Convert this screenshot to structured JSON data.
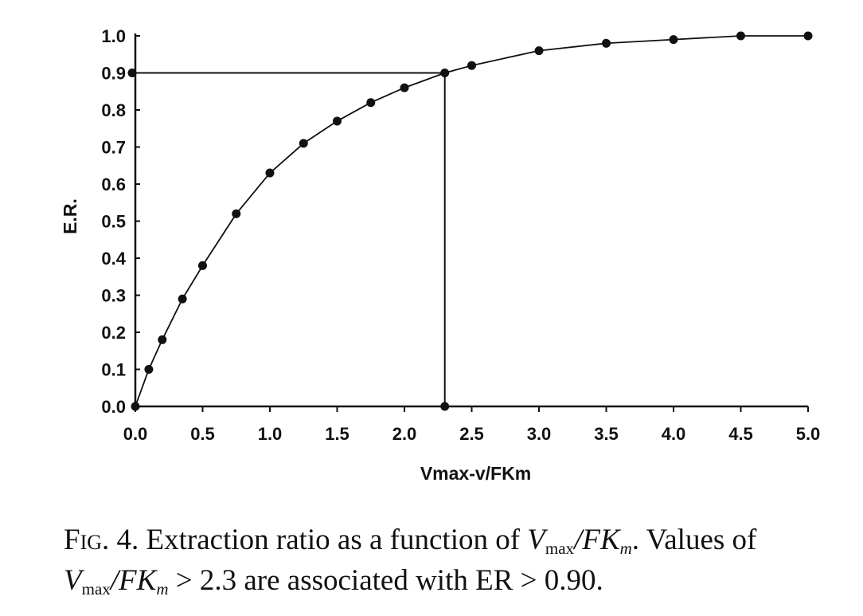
{
  "chart_data": {
    "type": "line",
    "xlabel": "Vmax-v/FKm",
    "ylabel": "E.R.",
    "xlim": [
      0,
      5
    ],
    "ylim": [
      0,
      1
    ],
    "xticks": [
      "0.0",
      "0.5",
      "1.0",
      "1.5",
      "2.0",
      "2.5",
      "3.0",
      "3.5",
      "4.0",
      "4.5",
      "5.0"
    ],
    "yticks": [
      "0.0",
      "0.1",
      "0.2",
      "0.3",
      "0.4",
      "0.5",
      "0.6",
      "0.7",
      "0.8",
      "0.9",
      "1.0"
    ],
    "grid": false,
    "series": [
      {
        "x": [
          0.0,
          0.1,
          0.2,
          0.35,
          0.5,
          0.75,
          1.0,
          1.25,
          1.5,
          1.75,
          2.0,
          2.3,
          2.5,
          3.0,
          3.5,
          4.0,
          4.5,
          5.0
        ],
        "y": [
          0.0,
          0.1,
          0.18,
          0.29,
          0.38,
          0.52,
          0.63,
          0.71,
          0.77,
          0.82,
          0.86,
          0.9,
          0.92,
          0.96,
          0.98,
          0.99,
          1.0,
          1.0
        ]
      }
    ],
    "reference_lines": {
      "threshold_x": 2.3,
      "threshold_y": 0.9
    }
  },
  "caption": {
    "label": "Fig. 4.",
    "text_1": " Extraction ratio as a function of ",
    "text_2": ". Values of ",
    "text_3": " > 2.3 are associated with ER > 0.90.",
    "v": "V",
    "v_sub": "max",
    "fk": "/FK",
    "fk_sub": "m"
  }
}
